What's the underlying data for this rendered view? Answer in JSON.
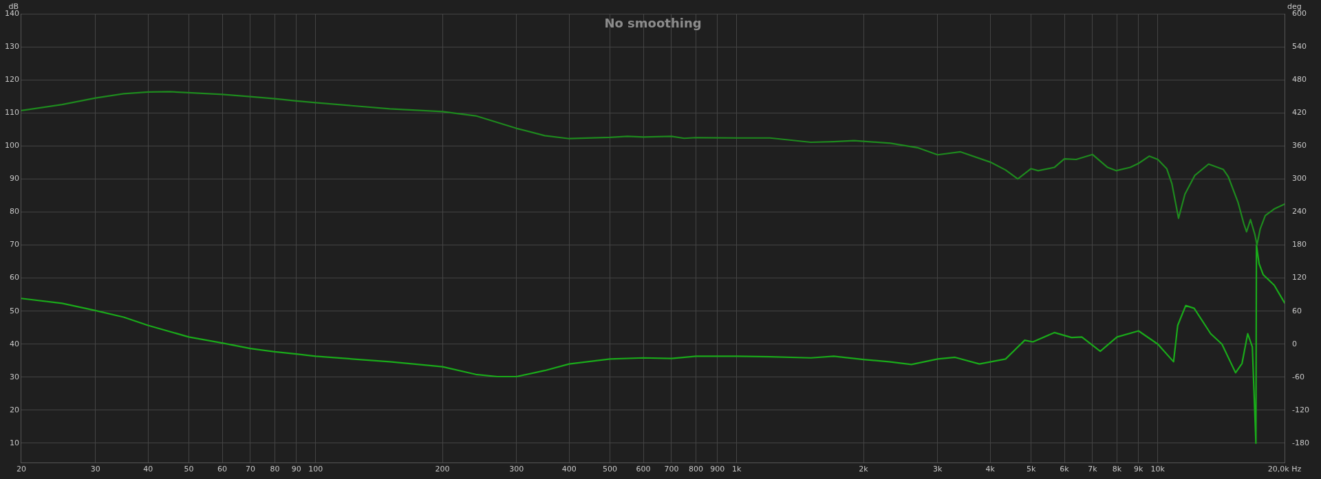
{
  "chart_data": {
    "type": "line",
    "title": "No smoothing",
    "ylabel": "dB",
    "y2label": "deg",
    "log": "x",
    "grid": true,
    "legend": false,
    "marker": "none",
    "line_style": "solid",
    "xlim": [
      20,
      20000
    ],
    "xticks": [
      20,
      30,
      40,
      50,
      60,
      70,
      80,
      90,
      100,
      200,
      300,
      400,
      500,
      600,
      700,
      800,
      900,
      {
        "value": 1000,
        "label": "1k"
      },
      {
        "value": 2000,
        "label": "2k"
      },
      {
        "value": 3000,
        "label": "3k"
      },
      {
        "value": 4000,
        "label": "4k"
      },
      {
        "value": 5000,
        "label": "5k"
      },
      {
        "value": 6000,
        "label": "6k"
      },
      {
        "value": 7000,
        "label": "7k"
      },
      {
        "value": 8000,
        "label": "8k"
      },
      {
        "value": 9000,
        "label": "9k"
      },
      {
        "value": 10000,
        "label": "10k"
      },
      {
        "value": 20000,
        "label": "20,0k Hz"
      }
    ],
    "ylim": [
      4,
      140
    ],
    "yticks": [
      10,
      20,
      30,
      40,
      50,
      60,
      70,
      80,
      90,
      100,
      110,
      120,
      130,
      140
    ],
    "y2lim": [
      -216,
      600
    ],
    "y2ticks": [
      -180,
      -120,
      -60,
      0,
      60,
      120,
      180,
      240,
      300,
      360,
      420,
      480,
      540,
      600
    ],
    "series": [
      {
        "color": "#1e8a1e",
        "x": [
          20,
          25,
          30,
          35,
          40,
          45,
          50,
          60,
          70,
          80,
          90,
          100,
          150,
          200,
          240,
          300,
          350,
          400,
          500,
          550,
          600,
          700,
          750,
          800,
          1000,
          1200,
          1500,
          1700,
          1900,
          2000,
          2317,
          2700,
          3000,
          3400,
          4000,
          4350,
          4650,
          5000,
          5200,
          5680,
          6000,
          6400,
          7000,
          7600,
          7960,
          8600,
          9000,
          9550,
          10000,
          10500,
          10800,
          11200,
          11600,
          12250,
          13200,
          14300,
          14700,
          15500,
          16000,
          16250,
          16600,
          17000,
          17200,
          17500,
          18000,
          18900,
          20000
        ],
        "values": [
          110.7,
          112.5,
          114.5,
          115.8,
          116.3,
          116.4,
          116.1,
          115.6,
          114.9,
          114.3,
          113.6,
          113.1,
          111.2,
          110.4,
          109.1,
          105.3,
          103.1,
          102.2,
          102.6,
          102.9,
          102.7,
          102.9,
          102.3,
          102.5,
          102.4,
          102.4,
          101.1,
          101.3,
          101.6,
          101.4,
          100.8,
          99.4,
          97.3,
          98.2,
          95.1,
          92.7,
          90.0,
          93.1,
          92.5,
          93.5,
          96.1,
          95.9,
          97.4,
          93.5,
          92.5,
          93.5,
          94.7,
          96.9,
          95.9,
          93.1,
          88.6,
          78.1,
          85.4,
          91.1,
          94.5,
          92.9,
          90.7,
          83.0,
          76.5,
          74.0,
          77.7,
          73.2,
          70.0,
          74.8,
          78.9,
          80.9,
          82.4
        ]
      },
      {
        "color": "#1aab1a",
        "axis": "y2",
        "x": [
          20,
          25,
          30,
          35,
          40,
          50,
          60,
          70,
          80,
          90,
          100,
          150,
          200,
          240,
          270,
          300,
          350,
          400,
          500,
          600,
          700,
          800,
          1000,
          1200,
          1500,
          1700,
          2000,
          2300,
          2600,
          3000,
          3300,
          3770,
          4350,
          4830,
          5050,
          5680,
          6240,
          6600,
          7300,
          8000,
          9000,
          10000,
          10900,
          11150,
          11650,
          12200,
          13350,
          14200,
          15300,
          15850,
          16350,
          16770,
          17100,
          17150,
          17400,
          17800,
          18900,
          20000
        ],
        "values": [
          83,
          74,
          61,
          49,
          34,
          13,
          2,
          -8,
          -14,
          -18,
          -22,
          -32,
          -41,
          -55,
          -59,
          -59,
          -48,
          -36,
          -27,
          -25,
          -26,
          -22,
          -22,
          -23,
          -25,
          -22,
          -28,
          -32,
          -37,
          -27,
          -24,
          -36,
          -27,
          7,
          4,
          21,
          12,
          13,
          -13,
          13,
          24,
          0,
          -32,
          34,
          70,
          65,
          19,
          0,
          -52,
          -35,
          19,
          -5,
          -180,
          180,
          146,
          126,
          107,
          75
        ]
      }
    ]
  }
}
